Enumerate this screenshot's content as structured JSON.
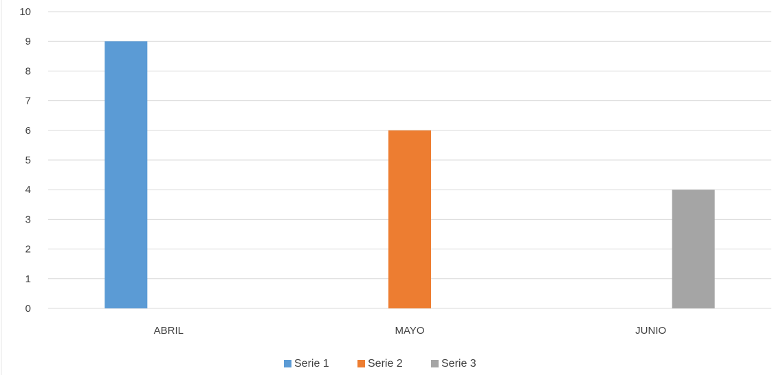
{
  "chart_data": {
    "type": "bar",
    "categories": [
      "ABRIL",
      "MAYO",
      "JUNIO"
    ],
    "series": [
      {
        "name": "Serie 1",
        "values": [
          9,
          null,
          null
        ],
        "color": "#5B9BD5"
      },
      {
        "name": "Serie 2",
        "values": [
          null,
          6,
          null
        ],
        "color": "#ED7D31"
      },
      {
        "name": "Serie 3",
        "values": [
          null,
          null,
          4
        ],
        "color": "#A5A5A5"
      }
    ],
    "title": "",
    "xlabel": "",
    "ylabel": "",
    "ylim": [
      0,
      10
    ],
    "yticks": [
      0,
      1,
      2,
      3,
      4,
      5,
      6,
      7,
      8,
      9,
      10
    ],
    "grid": true,
    "legend": "bottom",
    "colors": {
      "grid": "#D9D9D9",
      "text": "#404040"
    }
  }
}
